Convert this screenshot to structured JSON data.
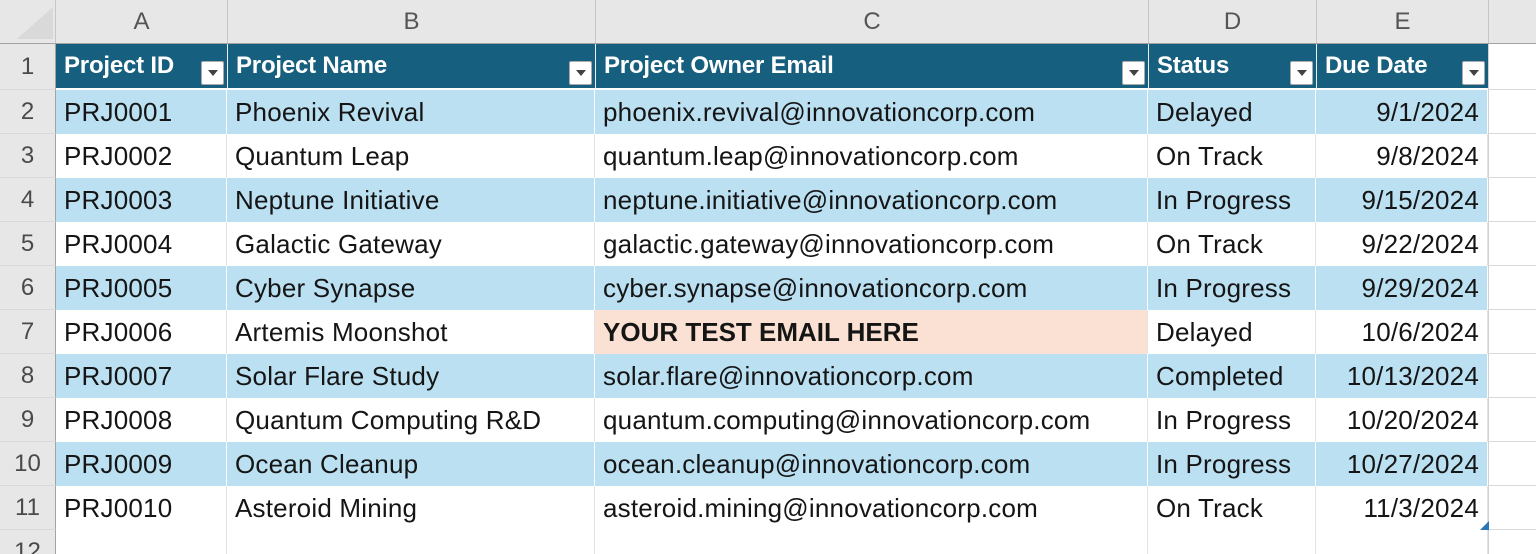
{
  "colors": {
    "header_bg": "#175F7E",
    "header_text": "#FFFFFF",
    "band_fill": "#BBE0F2",
    "highlight_fill": "#FAE1D3",
    "strip_bg": "#E7E7E7",
    "handle_blue": "#2E75B6"
  },
  "column_letters": [
    "A",
    "B",
    "C",
    "D",
    "E"
  ],
  "row_numbers": [
    "1",
    "2",
    "3",
    "4",
    "5",
    "6",
    "7",
    "8",
    "9",
    "10",
    "11",
    "12"
  ],
  "table": {
    "headers": [
      "Project ID",
      "Project Name",
      "Project Owner Email",
      "Status",
      "Due Date"
    ],
    "rows": [
      {
        "project_id": "PRJ0001",
        "project_name": "Phoenix Revival",
        "owner_email": "phoenix.revival@innovationcorp.com",
        "status": "Delayed",
        "due_date": "9/1/2024",
        "email_cell_highlighted": false
      },
      {
        "project_id": "PRJ0002",
        "project_name": "Quantum Leap",
        "owner_email": "quantum.leap@innovationcorp.com",
        "status": "On Track",
        "due_date": "9/8/2024",
        "email_cell_highlighted": false
      },
      {
        "project_id": "PRJ0003",
        "project_name": "Neptune Initiative",
        "owner_email": "neptune.initiative@innovationcorp.com",
        "status": "In Progress",
        "due_date": "9/15/2024",
        "email_cell_highlighted": false
      },
      {
        "project_id": "PRJ0004",
        "project_name": "Galactic Gateway",
        "owner_email": "galactic.gateway@innovationcorp.com",
        "status": "On Track",
        "due_date": "9/22/2024",
        "email_cell_highlighted": false
      },
      {
        "project_id": "PRJ0005",
        "project_name": "Cyber Synapse",
        "owner_email": "cyber.synapse@innovationcorp.com",
        "status": "In Progress",
        "due_date": "9/29/2024",
        "email_cell_highlighted": false
      },
      {
        "project_id": "PRJ0006",
        "project_name": "Artemis Moonshot",
        "owner_email": "YOUR TEST EMAIL HERE",
        "status": "Delayed",
        "due_date": "10/6/2024",
        "email_cell_highlighted": true
      },
      {
        "project_id": "PRJ0007",
        "project_name": "Solar Flare Study",
        "owner_email": "solar.flare@innovationcorp.com",
        "status": "Completed",
        "due_date": "10/13/2024",
        "email_cell_highlighted": false
      },
      {
        "project_id": "PRJ0008",
        "project_name": "Quantum Computing R&D",
        "owner_email": "quantum.computing@innovationcorp.com",
        "status": "In Progress",
        "due_date": "10/20/2024",
        "email_cell_highlighted": false
      },
      {
        "project_id": "PRJ0009",
        "project_name": "Ocean Cleanup",
        "owner_email": "ocean.cleanup@innovationcorp.com",
        "status": "In Progress",
        "due_date": "10/27/2024",
        "email_cell_highlighted": false
      },
      {
        "project_id": "PRJ0010",
        "project_name": "Asteroid Mining",
        "owner_email": "asteroid.mining@innovationcorp.com",
        "status": "On Track",
        "due_date": "11/3/2024",
        "email_cell_highlighted": false
      }
    ]
  }
}
